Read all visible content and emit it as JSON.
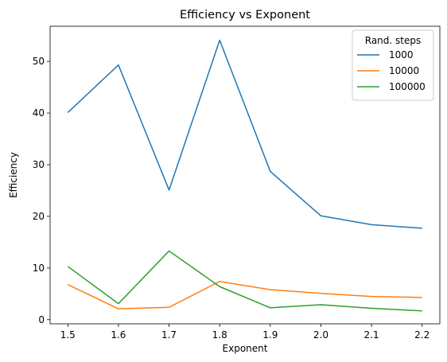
{
  "chart_data": {
    "type": "line",
    "title": "Efficiency vs Exponent",
    "xlabel": "Exponent",
    "ylabel": "Efficiency",
    "x": [
      1.5,
      1.6,
      1.7,
      1.8,
      1.9,
      2.0,
      2.1,
      2.2
    ],
    "x_tick_labels": [
      "1.5",
      "1.6",
      "1.7",
      "1.8",
      "1.9",
      "2.0",
      "2.1",
      "2.2"
    ],
    "y_ticks": [
      0,
      10,
      20,
      30,
      40,
      50
    ],
    "y_tick_labels": [
      "0",
      "10",
      "20",
      "30",
      "40",
      "50"
    ],
    "xlim": [
      1.465,
      2.235
    ],
    "ylim": [
      -0.8,
      56.8
    ],
    "grid": false,
    "legend": {
      "title": "Rand. steps",
      "placement": "top-right"
    },
    "series": [
      {
        "name": "1000",
        "color": "#1f77b4",
        "values": [
          40.1,
          49.3,
          25.1,
          54.1,
          28.7,
          20.1,
          18.4,
          17.7
        ]
      },
      {
        "name": "10000",
        "color": "#ff7f0e",
        "values": [
          6.8,
          2.1,
          2.4,
          7.4,
          5.8,
          5.1,
          4.5,
          4.3
        ]
      },
      {
        "name": "100000",
        "color": "#2ca02c",
        "values": [
          10.3,
          3.1,
          13.3,
          6.4,
          2.3,
          2.9,
          2.2,
          1.7
        ]
      }
    ]
  }
}
